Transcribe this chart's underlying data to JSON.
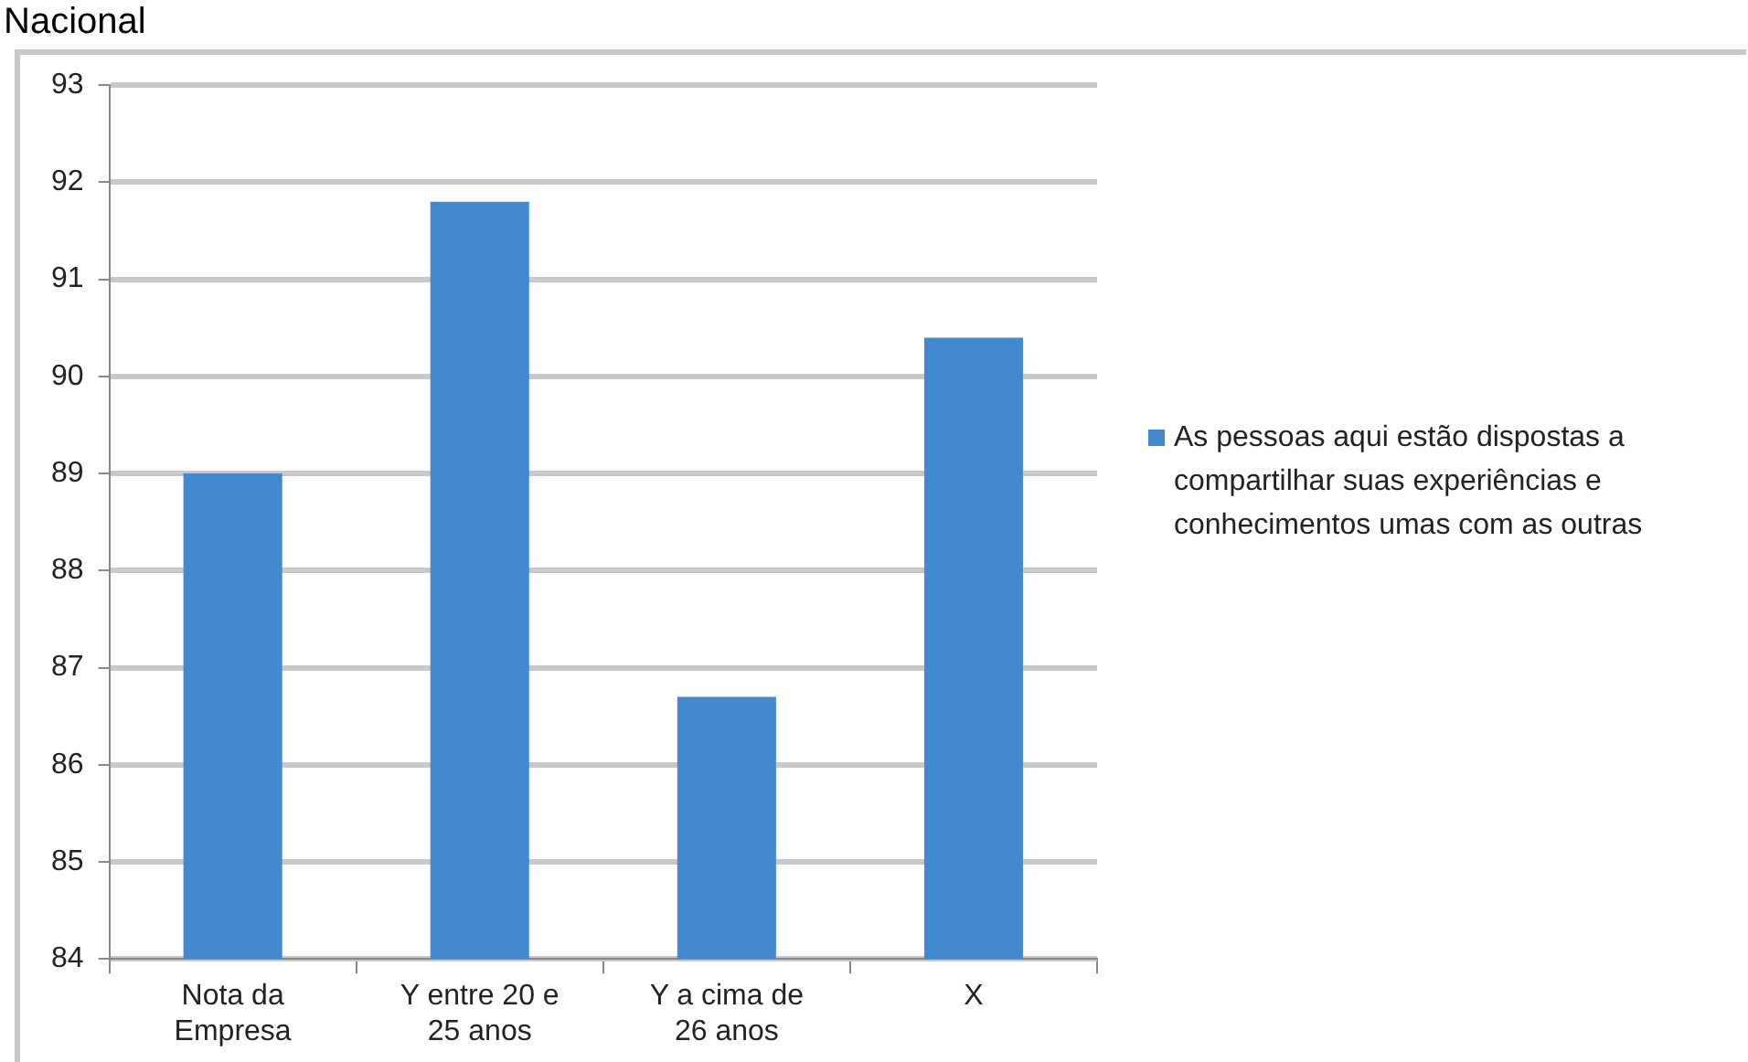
{
  "chart_data": {
    "type": "bar",
    "title": "Nacional",
    "categories": [
      "Nota da Empresa",
      "Y entre 20 e 25 anos",
      "Y a cima de 26 anos",
      "X"
    ],
    "series": [
      {
        "name": "As pessoas aqui estão dispostas a compartilhar suas experiências e conhecimentos umas com as outras",
        "color": "#4389cf",
        "values": [
          89.0,
          91.8,
          86.7,
          90.4
        ]
      }
    ],
    "ylim": [
      84,
      93
    ],
    "yticks": [
      84,
      85,
      86,
      87,
      88,
      89,
      90,
      91,
      92,
      93
    ],
    "grid": "y",
    "legend": "right"
  }
}
